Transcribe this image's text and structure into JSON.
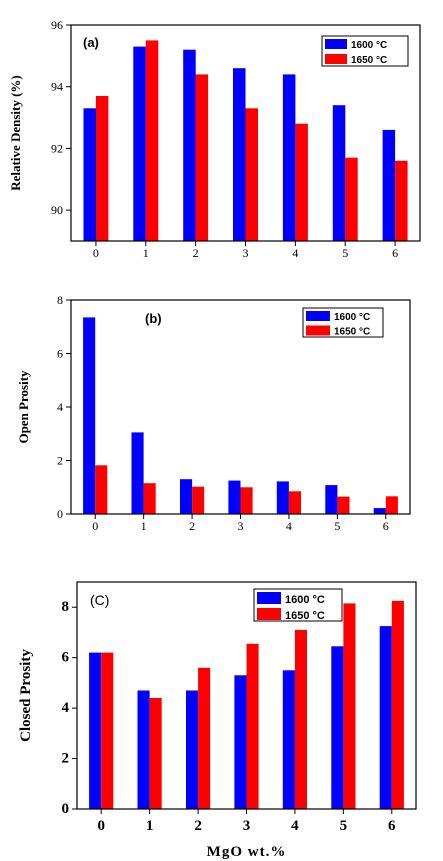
{
  "chart_data": [
    {
      "type": "bar",
      "panel_label": "(a)",
      "categories": [
        "0",
        "1",
        "2",
        "3",
        "4",
        "5",
        "6"
      ],
      "series": [
        {
          "name": "1600 °C",
          "color": "#0000ff",
          "values": [
            93.3,
            95.3,
            95.2,
            94.6,
            94.4,
            93.4,
            92.6
          ]
        },
        {
          "name": "1650 °C",
          "color": "#ff0000",
          "values": [
            93.7,
            95.5,
            94.4,
            93.3,
            92.8,
            91.7,
            91.6
          ]
        }
      ],
      "xlabel": "",
      "ylabel": "Relative Density (%)",
      "ylim": [
        89,
        96
      ],
      "yticks": [
        "90",
        "92",
        "94",
        "96"
      ],
      "legend_position": "top-right"
    },
    {
      "type": "bar",
      "panel_label": "(b)",
      "categories": [
        "0",
        "1",
        "2",
        "3",
        "4",
        "5",
        "6"
      ],
      "series": [
        {
          "name": "1600 °C",
          "color": "#0000ff",
          "values": [
            7.35,
            3.05,
            1.3,
            1.25,
            1.22,
            1.08,
            0.22
          ]
        },
        {
          "name": "1650 °C",
          "color": "#ff0000",
          "values": [
            1.82,
            1.15,
            1.02,
            1.0,
            0.85,
            0.65,
            0.66
          ]
        }
      ],
      "xlabel": "",
      "ylabel": "Open Prosity",
      "ylim": [
        0,
        8
      ],
      "yticks": [
        "0",
        "2",
        "4",
        "6",
        "8"
      ],
      "legend_position": "top-right"
    },
    {
      "type": "bar",
      "panel_label": "(C)",
      "categories": [
        "0",
        "1",
        "2",
        "3",
        "4",
        "5",
        "6"
      ],
      "series": [
        {
          "name": "1600 °C",
          "color": "#0000ff",
          "values": [
            6.2,
            4.7,
            4.7,
            5.3,
            5.5,
            6.45,
            7.25
          ]
        },
        {
          "name": "1650 °C",
          "color": "#ff0000",
          "values": [
            6.2,
            4.4,
            5.6,
            6.55,
            7.1,
            8.15,
            8.25
          ]
        }
      ],
      "xlabel": "MgO wt.%",
      "ylabel": "Closed Prosity",
      "ylim": [
        0,
        9
      ],
      "yticks": [
        "0",
        "2",
        "4",
        "6",
        "8"
      ],
      "legend_position": "top-right"
    }
  ]
}
